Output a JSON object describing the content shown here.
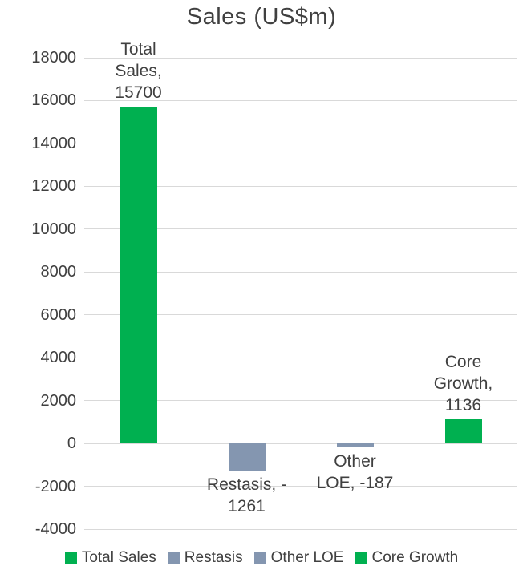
{
  "chart_data": {
    "type": "bar",
    "title": "Sales (US$m)",
    "categories": [
      "Total Sales",
      "Restasis",
      "Other LOE",
      "Core Growth"
    ],
    "values": [
      15700,
      -1261,
      -187,
      1136
    ],
    "bar_colors": [
      "#00B050",
      "#8496B0",
      "#8496B0",
      "#00B050"
    ],
    "data_labels": [
      [
        "Total",
        "Sales,",
        "15700"
      ],
      [
        "Restasis, -",
        "1261"
      ],
      [
        "Other",
        "LOE, -187"
      ],
      [
        "Core",
        "Growth,",
        "1136"
      ]
    ],
    "y_ticks": [
      18000,
      16000,
      14000,
      12000,
      10000,
      8000,
      6000,
      4000,
      2000,
      0,
      -2000,
      -4000
    ],
    "ylim": [
      -4000,
      18000
    ],
    "grid": true,
    "legend_position": "bottom",
    "legend": [
      {
        "label": "Total Sales",
        "color": "#00B050"
      },
      {
        "label": "Restasis",
        "color": "#8496B0"
      },
      {
        "label": "Other LOE",
        "color": "#8496B0"
      },
      {
        "label": "Core Growth",
        "color": "#00B050"
      }
    ],
    "style_colors": {
      "text": "#404040",
      "gridline": "#D9D9D9",
      "green": "#00B050",
      "blue_gray": "#8496B0"
    }
  }
}
